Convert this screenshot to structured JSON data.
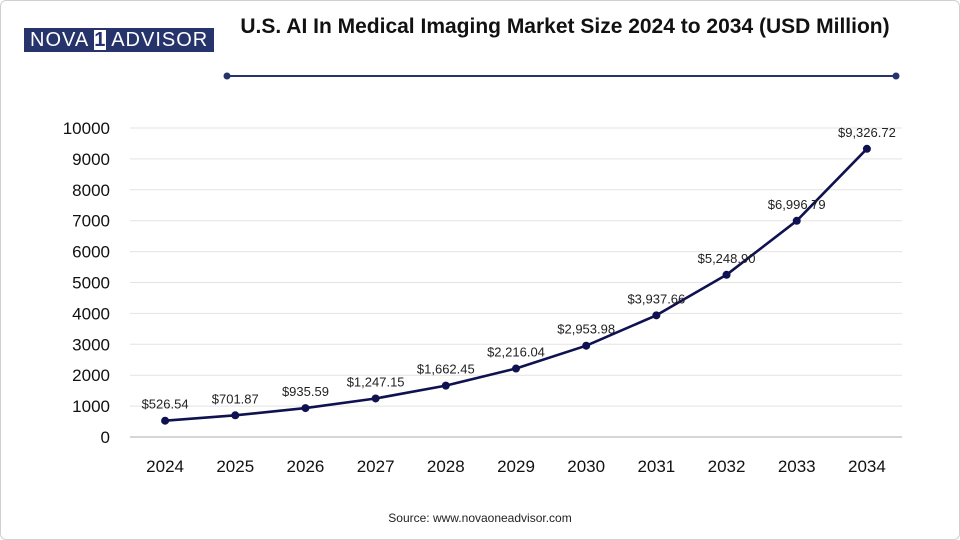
{
  "logo": {
    "left": "NOVA",
    "middle": "1",
    "right": "ADVISOR"
  },
  "title": "U.S. AI In Medical Imaging Market Size 2024 to 2034 (USD Million)",
  "source": "Source: www.novaoneadvisor.com",
  "colors": {
    "series": "#0f1150",
    "grid": "#e3e3e3",
    "axis": "#bdbdbd",
    "logo": "#27336b"
  },
  "chart_data": {
    "type": "line",
    "title": "U.S. AI In Medical Imaging Market Size 2024 to 2034 (USD Million)",
    "xlabel": "",
    "ylabel": "",
    "x": [
      "2024",
      "2025",
      "2026",
      "2027",
      "2028",
      "2029",
      "2030",
      "2031",
      "2032",
      "2033",
      "2034"
    ],
    "series": [
      {
        "name": "Market Size (USD Million)",
        "values": [
          526.54,
          701.87,
          935.59,
          1247.15,
          1662.45,
          2216.04,
          2953.98,
          3937.66,
          5248.9,
          6996.79,
          9326.72
        ],
        "labels": [
          "$526.54",
          "$701.87",
          "$935.59",
          "$1,247.15",
          "$1,662.45",
          "$2,216.04",
          "$2,953.98",
          "$3,937.66",
          "$5,248.90",
          "$6,996.79",
          "$9,326.72"
        ]
      }
    ],
    "ylim": [
      0,
      10000
    ],
    "yticks": [
      "0",
      "1000",
      "2000",
      "3000",
      "4000",
      "5000",
      "6000",
      "7000",
      "8000",
      "9000",
      "10000"
    ],
    "grid": true,
    "legend": "none"
  }
}
